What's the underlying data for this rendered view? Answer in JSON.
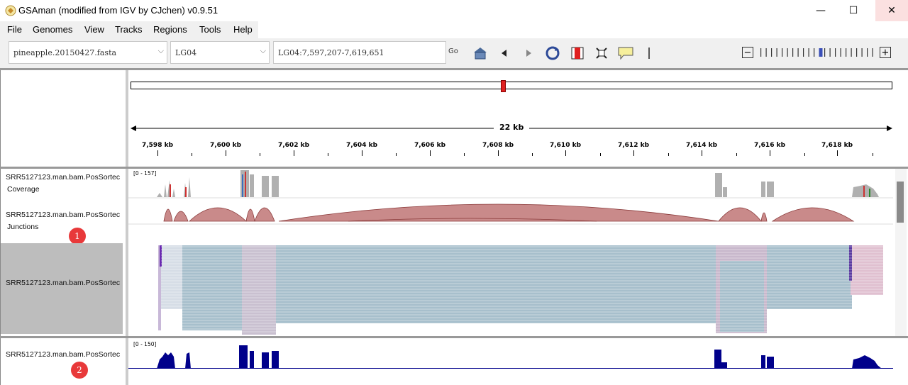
{
  "window": {
    "title": "GSAman (modified from IGV by CJchen) v0.9.51",
    "minimize_glyph": "—",
    "maximize_glyph": "☐",
    "close_glyph": "✕"
  },
  "menu": [
    "File",
    "Genomes",
    "View",
    "Tracks",
    "Regions",
    "Tools",
    "Help"
  ],
  "toolbar": {
    "genome": "pineapple.20150427.fasta",
    "chromosome": "LG04",
    "locus": "LG04:7,597,207-7,619,651",
    "go_label": "Go",
    "icons": [
      "home-icon",
      "back-icon",
      "forward-icon",
      "refresh-icon",
      "region-icon",
      "resize-icon",
      "popup-text-icon",
      "roi-divider-icon"
    ],
    "zoom_minus": "−",
    "zoom_plus": "+",
    "zoom_level_fraction": 0.5
  },
  "ruler": {
    "span_label": "22 kb",
    "ticks": [
      "7,598 kb",
      "7,600 kb",
      "7,602 kb",
      "7,604 kb",
      "7,606 kb",
      "7,608 kb",
      "7,610 kb",
      "7,612 kb",
      "7,614 kb",
      "7,616 kb",
      "7,618 kb"
    ]
  },
  "tracks": {
    "coverage_name": "SRR5127123.man.bam.PosSortec",
    "coverage_sub": "Coverage",
    "coverage_range": "[0 - 157]",
    "junctions_name": "SRR5127123.man.bam.PosSortec",
    "junctions_sub": "Junctions",
    "alignments_name": "SRR5127123.man.bam.PosSortec",
    "lower_name": "SRR5127123.man.bam.PosSortec",
    "lower_range": "[0 - 150]"
  },
  "annotations": {
    "badge1": "1",
    "badge2": "2"
  },
  "colors": {
    "read": "#a7bfcc",
    "junction": "#c98a8a",
    "coverage": "#b0b0b0",
    "lower_coverage": "#00008b",
    "roi": "#e02020"
  }
}
